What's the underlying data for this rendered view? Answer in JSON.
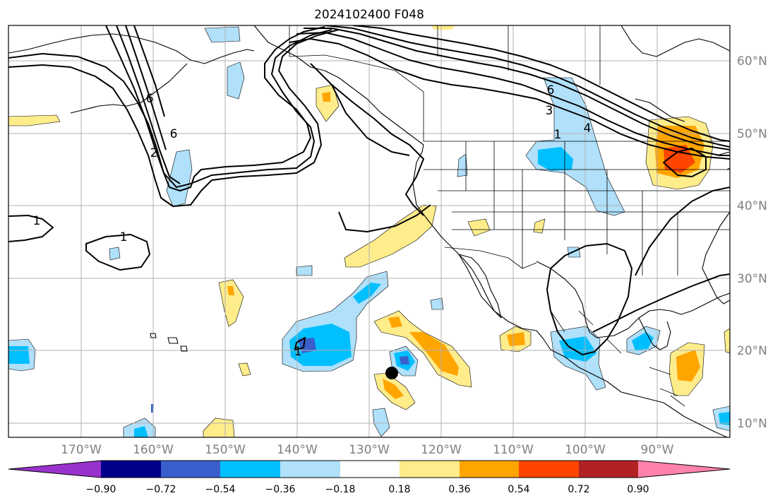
{
  "title": "2024102400 F048",
  "colors": {
    "cb_lt_090": "#9932cc",
    "cb_m090_m072": "#00008b",
    "cb_m072_m054": "#3a5fcd",
    "cb_m054_m036": "#00bfff",
    "cb_m036_m018": "#b0e0fa",
    "cb_m018_018": "#ffffff",
    "cb_018_036": "#ffec8b",
    "cb_036_054": "#ffa500",
    "cb_054_072": "#ff4500",
    "cb_072_090": "#b22222",
    "cb_gt_090": "#ff82ab"
  },
  "axes": {
    "lon_labels": [
      "170°W",
      "160°W",
      "150°W",
      "140°W",
      "130°W",
      "120°W",
      "110°W",
      "100°W",
      "90°W"
    ],
    "lat_labels": [
      "60°N",
      "50°N",
      "40°N",
      "30°N",
      "20°N",
      "10°N"
    ]
  },
  "colorbar": {
    "tick_labels": [
      "−0.90",
      "−0.72",
      "−0.54",
      "−0.36",
      "−0.18",
      "0.18",
      "0.36",
      "0.54",
      "0.72",
      "0.90"
    ]
  },
  "contour_labels": {
    "gulf_six": "6",
    "gulf_two": "2",
    "aleutian_six": "6",
    "plains_six": "6",
    "plains_three": "3",
    "plains_four": "4",
    "plains_one": "1",
    "west_one": "1",
    "pacific_one": "1",
    "tropical_one": "1"
  },
  "marker": {
    "symbol": "storm-center-dot"
  }
}
